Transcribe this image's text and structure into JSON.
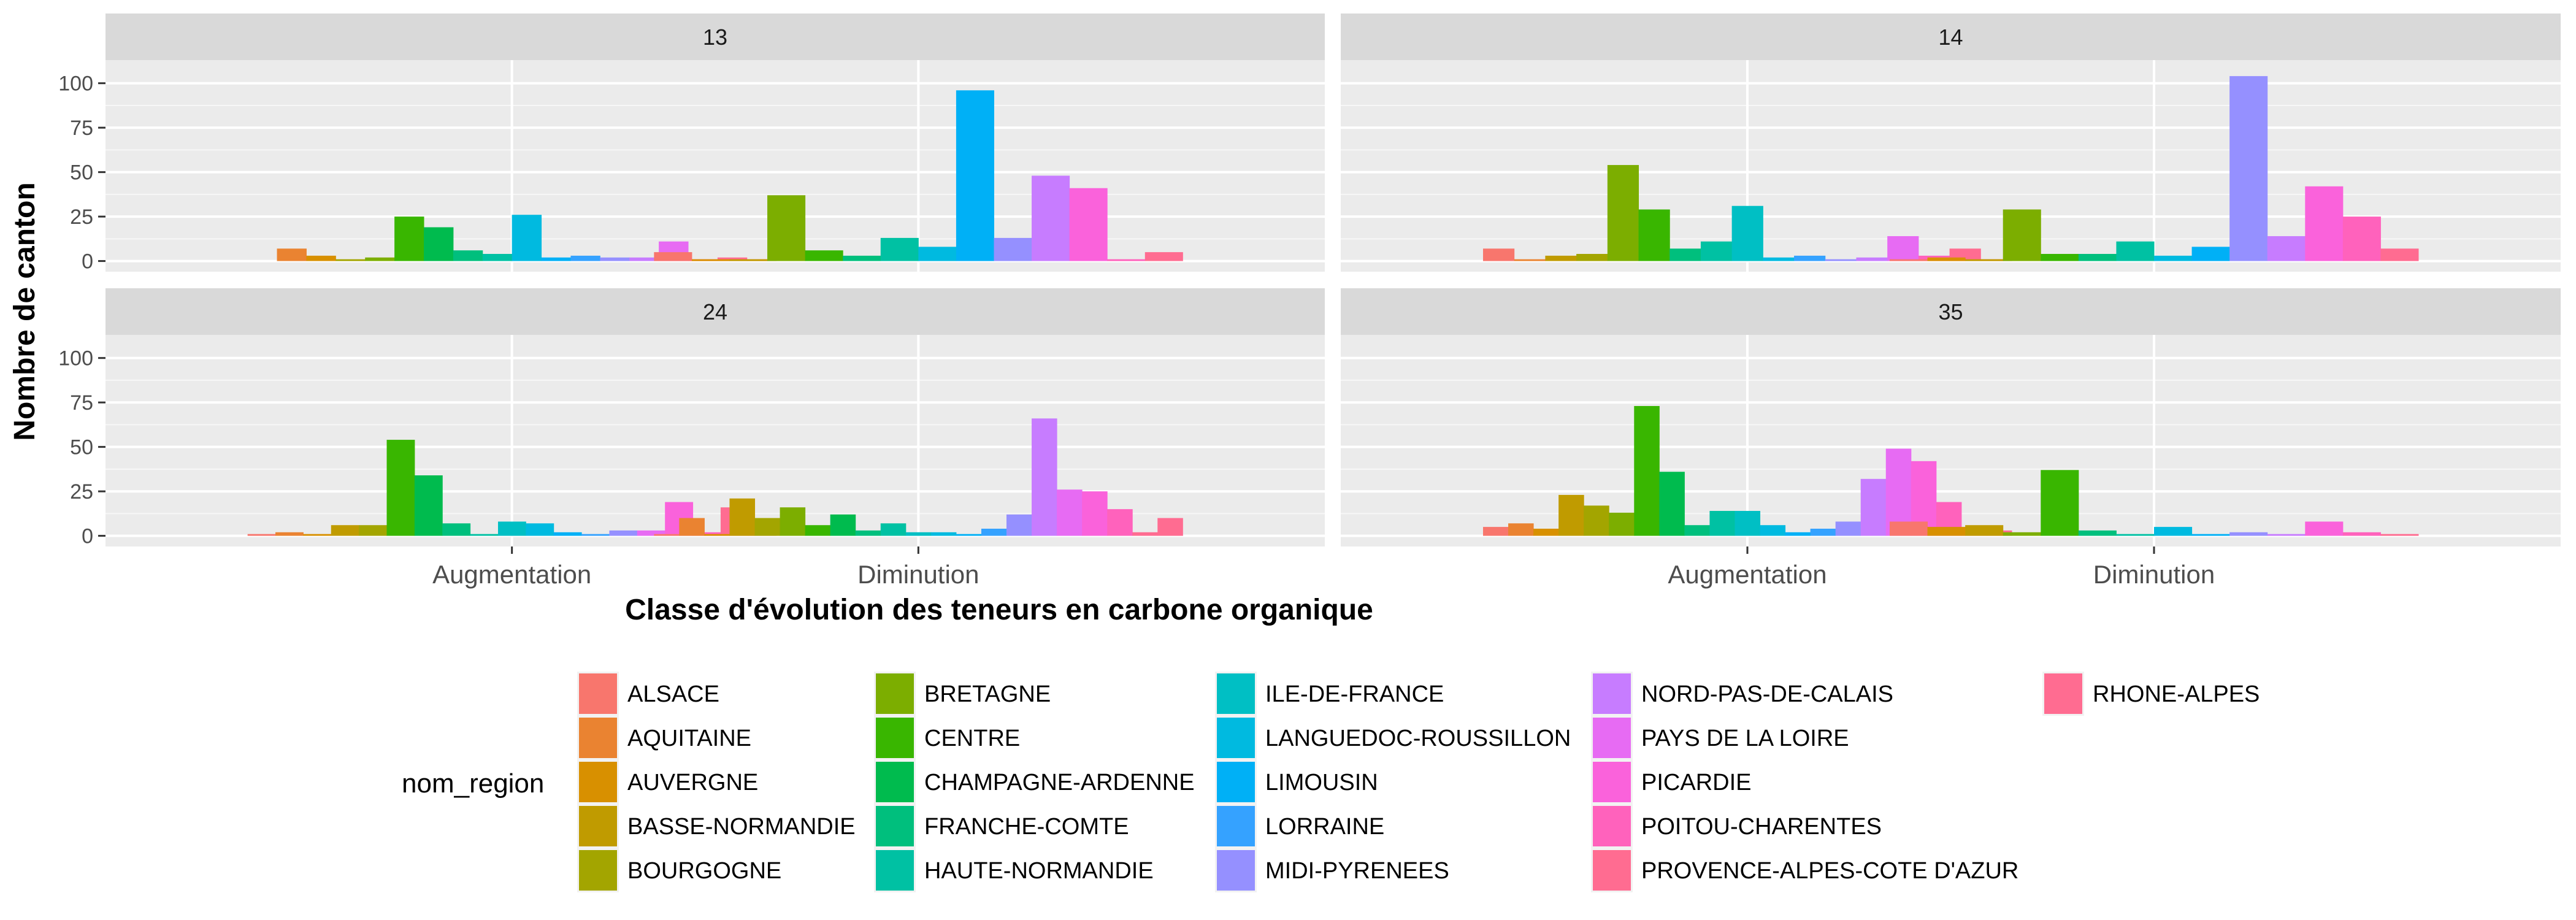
{
  "chart_data": {
    "type": "bar",
    "layout": "facet_wrap_2x2",
    "ylabel": "Nombre de canton",
    "xlabel": "Classe d'évolution des teneurs en carbone organique",
    "categories": [
      "Augmentation",
      "Diminution"
    ],
    "y_ticks": [
      0,
      25,
      50,
      75,
      100
    ],
    "ylim": [
      -6,
      113
    ],
    "grid": true,
    "legend": {
      "title": "nom_region",
      "position": "bottom",
      "entries": [
        {
          "name": "ALSACE",
          "color": "#F8766D"
        },
        {
          "name": "AQUITAINE",
          "color": "#EA8331"
        },
        {
          "name": "AUVERGNE",
          "color": "#D89000"
        },
        {
          "name": "BASSE-NORMANDIE",
          "color": "#C09B00"
        },
        {
          "name": "BOURGOGNE",
          "color": "#A3A500"
        },
        {
          "name": "BRETAGNE",
          "color": "#7CAE00"
        },
        {
          "name": "CENTRE",
          "color": "#39B600"
        },
        {
          "name": "CHAMPAGNE-ARDENNE",
          "color": "#00BB4E"
        },
        {
          "name": "FRANCHE-COMTE",
          "color": "#00BF7D"
        },
        {
          "name": "HAUTE-NORMANDIE",
          "color": "#00C1A3"
        },
        {
          "name": "ILE-DE-FRANCE",
          "color": "#00BFC4"
        },
        {
          "name": "LANGUEDOC-ROUSSILLON",
          "color": "#00BAE0"
        },
        {
          "name": "LIMOUSIN",
          "color": "#00B0F6"
        },
        {
          "name": "LORRAINE",
          "color": "#35A2FF"
        },
        {
          "name": "MIDI-PYRENEES",
          "color": "#9590FF"
        },
        {
          "name": "NORD-PAS-DE-CALAIS",
          "color": "#C77CFF"
        },
        {
          "name": "PAYS DE LA LOIRE",
          "color": "#E76BF3"
        },
        {
          "name": "PICARDIE",
          "color": "#FA62DB"
        },
        {
          "name": "POITOU-CHARENTES",
          "color": "#FF62BC"
        },
        {
          "name": "PROVENCE-ALPES-COTE D'AZUR",
          "color": "#FF6C91"
        },
        {
          "name": "RHONE-ALPES",
          "color": "#FF6C91"
        }
      ]
    },
    "facets": [
      {
        "label": "13",
        "groups": [
          {
            "category": "Augmentation",
            "values": [
              0,
              7,
              3,
              1,
              2,
              25,
              19,
              6,
              4,
              26,
              2,
              3,
              2,
              2,
              11,
              1,
              2,
              1
            ]
          },
          {
            "category": "Diminution",
            "values": [
              5,
              1,
              1,
              37,
              6,
              3,
              13,
              8,
              96,
              13,
              48,
              41,
              1,
              5
            ]
          }
        ]
      },
      {
        "label": "14",
        "groups": [
          {
            "category": "Augmentation",
            "values": [
              7,
              1,
              3,
              4,
              54,
              29,
              7,
              11,
              31,
              2,
              3,
              1,
              2,
              14,
              3,
              7,
              1
            ]
          },
          {
            "category": "Diminution",
            "values": [
              1,
              2,
              1,
              29,
              4,
              4,
              11,
              3,
              8,
              104,
              14,
              42,
              25,
              7
            ]
          }
        ]
      },
      {
        "label": "24",
        "groups": [
          {
            "category": "Augmentation",
            "values": [
              1,
              2,
              1,
              6,
              6,
              54,
              34,
              7,
              1,
              8,
              7,
              2,
              1,
              3,
              3,
              19,
              2,
              16,
              1
            ]
          },
          {
            "category": "Diminution",
            "values": [
              1,
              10,
              1,
              21,
              10,
              16,
              6,
              12,
              3,
              7,
              2,
              2,
              1,
              4,
              12,
              66,
              26,
              25,
              15,
              2,
              10
            ]
          }
        ]
      },
      {
        "label": "35",
        "groups": [
          {
            "category": "Augmentation",
            "values": [
              5,
              7,
              4,
              23,
              17,
              13,
              73,
              36,
              6,
              14,
              14,
              6,
              2,
              4,
              8,
              32,
              49,
              42,
              19,
              2,
              3
            ]
          },
          {
            "category": "Diminution",
            "values": [
              8,
              5,
              6,
              2,
              37,
              3,
              1,
              5,
              1,
              2,
              1,
              8,
              2,
              1
            ]
          }
        ]
      }
    ]
  }
}
